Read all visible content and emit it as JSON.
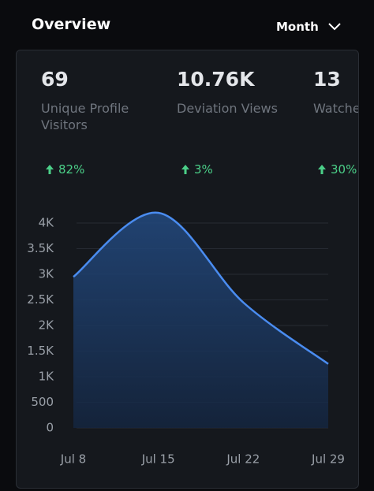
{
  "header": {
    "title": "Overview",
    "period": "Month"
  },
  "stats": [
    {
      "value": "69",
      "label": "Unique Profile Visitors",
      "change": "82%"
    },
    {
      "value": "10.76K",
      "label": "Deviation Views",
      "change": "3%"
    },
    {
      "value": "13",
      "label": "Watchers",
      "change": "30%"
    }
  ],
  "chart_data": {
    "type": "area",
    "x": [
      "Jul 8",
      "Jul 15",
      "Jul 22",
      "Jul 29"
    ],
    "values": [
      2950,
      4200,
      2450,
      1250
    ],
    "color": "#4a8cf0",
    "ylim": [
      0,
      4000
    ],
    "yticks": [
      0,
      500,
      {
        "value": 1000,
        "label": "1K"
      },
      {
        "value": 1500,
        "label": "1.5K"
      },
      {
        "value": 2000,
        "label": "2K"
      },
      {
        "value": 2500,
        "label": "2.5K"
      },
      {
        "value": 3000,
        "label": "3K"
      },
      {
        "value": 3500,
        "label": "3.5K"
      },
      {
        "value": 4000,
        "label": "4K"
      }
    ],
    "grid": true
  }
}
